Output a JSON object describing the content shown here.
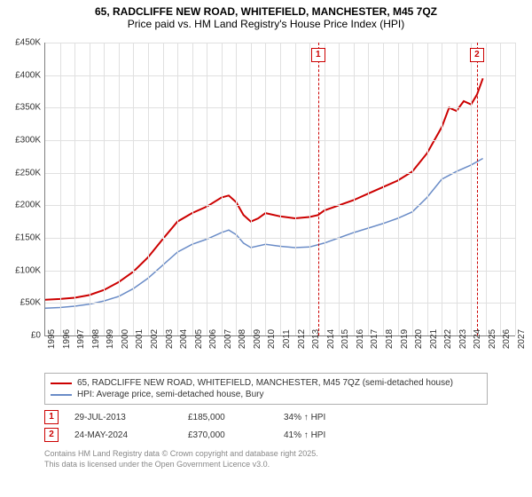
{
  "title_line1": "65, RADCLIFFE NEW ROAD, WHITEFIELD, MANCHESTER, M45 7QZ",
  "title_line2": "Price paid vs. HM Land Registry's House Price Index (HPI)",
  "chart": {
    "type": "line",
    "background_color": "#ffffff",
    "grid_color": "#e0e0e0",
    "axis_color": "#808080",
    "label_fontsize": 10,
    "x": {
      "min": 1995,
      "max": 2027,
      "tick_step": 1,
      "labels": [
        "1995",
        "1996",
        "1997",
        "1998",
        "1999",
        "2000",
        "2001",
        "2002",
        "2003",
        "2004",
        "2005",
        "2006",
        "2007",
        "2008",
        "2009",
        "2010",
        "2011",
        "2012",
        "2013",
        "2014",
        "2015",
        "2016",
        "2017",
        "2018",
        "2019",
        "2020",
        "2021",
        "2022",
        "2023",
        "2024",
        "2025",
        "2026",
        "2027"
      ]
    },
    "y": {
      "min": 0,
      "max": 450000,
      "tick_step": 50000,
      "prefix": "£",
      "suffix_thousands": "K",
      "labels": [
        "£0",
        "£50K",
        "£100K",
        "£150K",
        "£200K",
        "£250K",
        "£300K",
        "£350K",
        "£400K",
        "£450K"
      ]
    },
    "series": [
      {
        "id": "price_paid",
        "label": "65, RADCLIFFE NEW ROAD, WHITEFIELD, MANCHESTER, M45 7QZ (semi-detached house)",
        "color": "#cc0000",
        "line_width": 2,
        "points": [
          [
            1995.0,
            55000
          ],
          [
            1996.0,
            56000
          ],
          [
            1997.0,
            58000
          ],
          [
            1998.0,
            62000
          ],
          [
            1999.0,
            70000
          ],
          [
            2000.0,
            82000
          ],
          [
            2001.0,
            98000
          ],
          [
            2002.0,
            120000
          ],
          [
            2003.0,
            148000
          ],
          [
            2004.0,
            175000
          ],
          [
            2005.0,
            188000
          ],
          [
            2006.0,
            198000
          ],
          [
            2007.0,
            212000
          ],
          [
            2007.5,
            215000
          ],
          [
            2008.0,
            205000
          ],
          [
            2008.5,
            185000
          ],
          [
            2009.0,
            175000
          ],
          [
            2009.5,
            180000
          ],
          [
            2010.0,
            188000
          ],
          [
            2011.0,
            183000
          ],
          [
            2012.0,
            180000
          ],
          [
            2013.0,
            182000
          ],
          [
            2013.58,
            185000
          ],
          [
            2014.0,
            192000
          ],
          [
            2015.0,
            200000
          ],
          [
            2016.0,
            208000
          ],
          [
            2017.0,
            218000
          ],
          [
            2018.0,
            228000
          ],
          [
            2019.0,
            238000
          ],
          [
            2020.0,
            252000
          ],
          [
            2021.0,
            280000
          ],
          [
            2022.0,
            320000
          ],
          [
            2022.5,
            350000
          ],
          [
            2023.0,
            345000
          ],
          [
            2023.5,
            360000
          ],
          [
            2024.0,
            355000
          ],
          [
            2024.4,
            370000
          ],
          [
            2024.8,
            395000
          ]
        ]
      },
      {
        "id": "hpi",
        "label": "HPI: Average price, semi-detached house, Bury",
        "color": "#6a8cc7",
        "line_width": 1.5,
        "points": [
          [
            1995.0,
            42000
          ],
          [
            1996.0,
            43000
          ],
          [
            1997.0,
            45000
          ],
          [
            1998.0,
            48000
          ],
          [
            1999.0,
            53000
          ],
          [
            2000.0,
            60000
          ],
          [
            2001.0,
            72000
          ],
          [
            2002.0,
            88000
          ],
          [
            2003.0,
            108000
          ],
          [
            2004.0,
            128000
          ],
          [
            2005.0,
            140000
          ],
          [
            2006.0,
            148000
          ],
          [
            2007.0,
            158000
          ],
          [
            2007.5,
            162000
          ],
          [
            2008.0,
            155000
          ],
          [
            2008.5,
            142000
          ],
          [
            2009.0,
            135000
          ],
          [
            2010.0,
            140000
          ],
          [
            2011.0,
            137000
          ],
          [
            2012.0,
            135000
          ],
          [
            2013.0,
            136000
          ],
          [
            2014.0,
            142000
          ],
          [
            2015.0,
            150000
          ],
          [
            2016.0,
            158000
          ],
          [
            2017.0,
            165000
          ],
          [
            2018.0,
            172000
          ],
          [
            2019.0,
            180000
          ],
          [
            2020.0,
            190000
          ],
          [
            2021.0,
            212000
          ],
          [
            2022.0,
            240000
          ],
          [
            2023.0,
            252000
          ],
          [
            2024.0,
            262000
          ],
          [
            2024.8,
            272000
          ]
        ]
      }
    ],
    "markers": [
      {
        "id": "1",
        "x": 2013.58,
        "date": "29-JUL-2013",
        "price": "£185,000",
        "hpi_delta": "34% ↑ HPI"
      },
      {
        "id": "2",
        "x": 2024.4,
        "date": "24-MAY-2024",
        "price": "£370,000",
        "hpi_delta": "41% ↑ HPI"
      }
    ],
    "marker_color": "#cc0000",
    "marker_dash": "4,3"
  },
  "footer_line1": "Contains HM Land Registry data © Crown copyright and database right 2025.",
  "footer_line2": "This data is licensed under the Open Government Licence v3.0."
}
